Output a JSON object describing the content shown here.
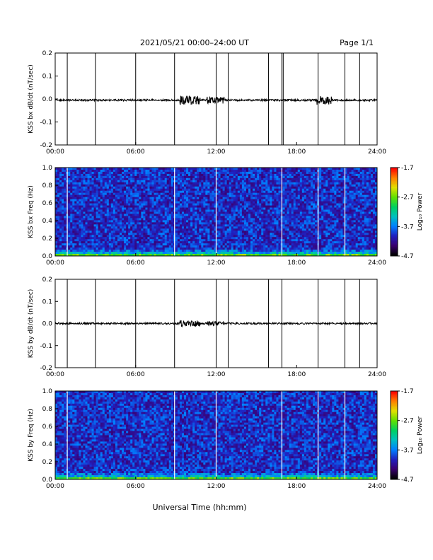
{
  "header": {
    "title": "2021/05/21  00:00–24:00 UT",
    "page": "Page 1/1"
  },
  "footer": {
    "xlabel": "Universal Time (hh:mm)"
  },
  "colorbar": {
    "label": "Log₁₀ Power",
    "ticks": [
      "-1.7",
      "-2.7",
      "-3.7",
      "-4.7"
    ],
    "colors": [
      "#000000",
      "#3a0070",
      "#2020c0",
      "#0080ff",
      "#00c0c0",
      "#00d060",
      "#60e000",
      "#e0e000",
      "#ff8000",
      "#ff0000"
    ]
  },
  "chart_data": [
    {
      "type": "line",
      "title": "",
      "ylabel": "KSS bx dB/dt (nT/sec)",
      "xlabel": "",
      "x_ticks": [
        "00:00",
        "06:00",
        "12:00",
        "18:00",
        "24:00"
      ],
      "y_ticks": [
        "0.2",
        "0.1",
        "0.0",
        "-0.1",
        "-0.2"
      ],
      "xlim": [
        0,
        24
      ],
      "ylim": [
        -0.2,
        0.2
      ],
      "baseline": -0.005,
      "spikes_hours": [
        0.9,
        3.0,
        6.0,
        8.9,
        12.0,
        12.9,
        15.9,
        16.9,
        17.0,
        19.6,
        21.6,
        22.7
      ],
      "activity_hours": [
        [
          9.3,
          10.8,
          0.02
        ],
        [
          11.3,
          12.6,
          0.015
        ],
        [
          19.5,
          20.6,
          0.02
        ]
      ]
    },
    {
      "type": "heatmap",
      "title": "",
      "ylabel": "KSS bx Freq (Hz)",
      "xlabel": "",
      "x_ticks": [
        "00:00",
        "06:00",
        "12:00",
        "18:00",
        "24:00"
      ],
      "y_ticks": [
        "1.0",
        "0.8",
        "0.6",
        "0.4",
        "0.2",
        "0.0"
      ],
      "xlim": [
        0,
        24
      ],
      "ylim": [
        0.0,
        1.0
      ],
      "value_range": [
        -4.7,
        -1.7
      ],
      "gap_hours": [
        0.9,
        8.9,
        12.0,
        16.9,
        19.6,
        21.6
      ]
    },
    {
      "type": "line",
      "title": "",
      "ylabel": "KSS by dB/dt (nT/sec)",
      "xlabel": "",
      "x_ticks": [
        "00:00",
        "06:00",
        "12:00",
        "18:00",
        "24:00"
      ],
      "y_ticks": [
        "0.2",
        "0.1",
        "0.0",
        "-0.1",
        "-0.2"
      ],
      "xlim": [
        0,
        24
      ],
      "ylim": [
        -0.2,
        0.2
      ],
      "baseline": 0.0,
      "spikes_hours": [
        0.9,
        3.0,
        6.0,
        8.9,
        12.0,
        12.9,
        15.9,
        16.9,
        19.6,
        21.6,
        22.7
      ],
      "activity_hours": [
        [
          9.3,
          10.8,
          0.015
        ],
        [
          11.3,
          12.6,
          0.01
        ]
      ]
    },
    {
      "type": "heatmap",
      "title": "",
      "ylabel": "KSS by Freq (Hz)",
      "xlabel": "",
      "x_ticks": [
        "00:00",
        "06:00",
        "12:00",
        "18:00",
        "24:00"
      ],
      "y_ticks": [
        "1.0",
        "0.8",
        "0.6",
        "0.4",
        "0.2",
        "0.0"
      ],
      "xlim": [
        0,
        24
      ],
      "ylim": [
        0.0,
        1.0
      ],
      "value_range": [
        -4.7,
        -1.7
      ],
      "gap_hours": [
        0.9,
        8.9,
        12.0,
        16.9,
        19.6,
        21.6
      ]
    }
  ]
}
